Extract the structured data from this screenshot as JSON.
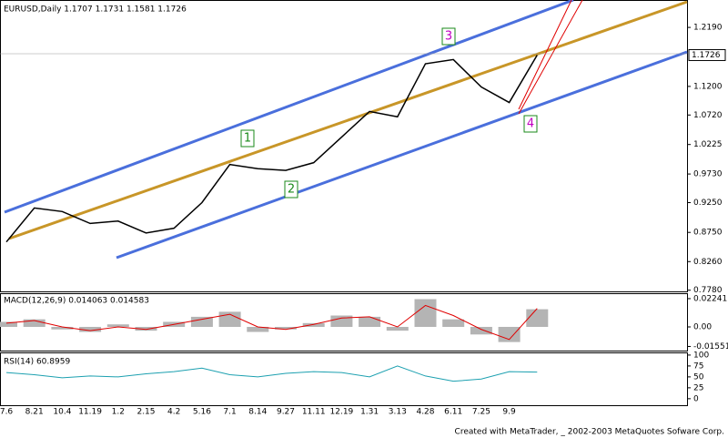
{
  "chart_data": [
    {
      "type": "line",
      "title": "EURUSD,Daily  1.1707 1.1731 1.1581 1.1726",
      "color": "#000000",
      "categories": [
        "7.6",
        "8.21",
        "10.4",
        "11.19",
        "1.2",
        "2.15",
        "4.2",
        "5.16",
        "7.1",
        "8.14",
        "9.27",
        "11.11",
        "12.19",
        "1.31",
        "3.13",
        "4.28",
        "6.11",
        "7.25",
        "9.9",
        null
      ],
      "values": [
        0.859,
        0.916,
        0.91,
        0.89,
        0.894,
        0.874,
        0.882,
        0.925,
        0.989,
        0.982,
        0.979,
        0.992,
        1.035,
        1.078,
        1.069,
        1.158,
        1.165,
        1.119,
        1.093,
        1.1726
      ],
      "ylim": [
        0.776,
        1.265
      ],
      "yticks": [
        {
          "value": 1.219,
          "label": "1.2190"
        },
        {
          "value": 1.12,
          "label": "1.1200"
        },
        {
          "value": 1.072,
          "label": "1.0720"
        },
        1.0225,
        {
          "value": 0.973,
          "label": "0.9730"
        },
        {
          "value": 0.925,
          "label": "0.9250"
        },
        {
          "value": 0.875,
          "label": "0.8750"
        },
        {
          "value": 0.826,
          "label": "0.8260"
        },
        {
          "value": 0.778,
          "label": "0.7780"
        }
      ],
      "current_price": 1.1726,
      "annotations": [
        "1",
        "2",
        "3",
        "4"
      ]
    },
    {
      "type": "bar",
      "title": "MACD(12,26,9)  0.014063  0.014583",
      "color": "#b4b4b4",
      "signal_color": "#e00000",
      "values": [
        0.004,
        0.006,
        -0.002,
        -0.004,
        0.002,
        -0.003,
        0.004,
        0.008,
        0.012,
        -0.004,
        -0.002,
        0.003,
        0.009,
        0.008,
        -0.003,
        0.022,
        0.006,
        -0.006,
        -0.012,
        0.014
      ],
      "signal": [
        0.003,
        0.005,
        0.0,
        -0.003,
        0.0,
        -0.002,
        0.002,
        0.006,
        0.01,
        0.0,
        -0.002,
        0.002,
        0.007,
        0.008,
        0.0,
        0.017,
        0.009,
        -0.002,
        -0.01,
        0.0146
      ],
      "ylim": [
        -0.0195,
        0.0267
      ],
      "yticks": [
        0.02241,
        {
          "value": 0,
          "label": "0.00"
        },
        -0.01551
      ]
    },
    {
      "type": "line",
      "title": "RSI(14) 60.8959",
      "color": "#1ca0b0",
      "values": [
        60,
        55,
        48,
        52,
        50,
        57,
        62,
        70,
        55,
        50,
        58,
        62,
        60,
        50,
        75,
        52,
        40,
        45,
        62,
        61
      ],
      "ylim": [
        -17,
        104
      ],
      "yticks": [
        100,
        75,
        50,
        25,
        0
      ]
    }
  ],
  "footer": "Created with MetaTrader, _ 2002-2003 MetaQuotes Sofware Corp."
}
